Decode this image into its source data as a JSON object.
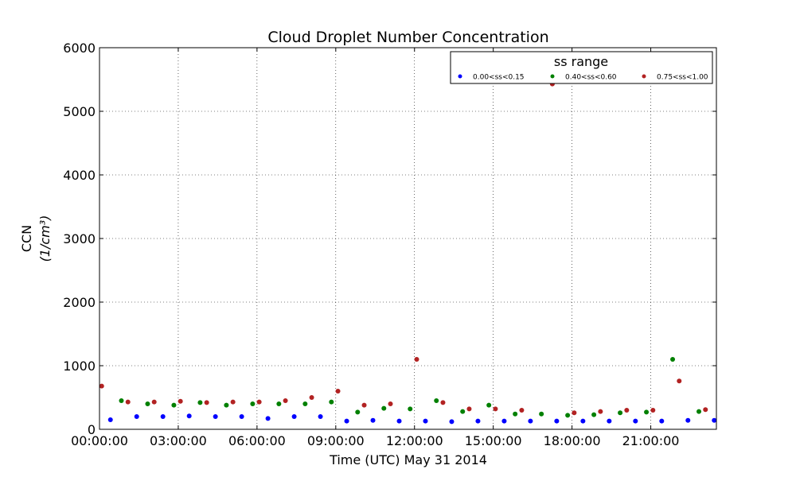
{
  "chart_data": {
    "type": "scatter",
    "title": "Cloud Droplet Number Concentration",
    "xlabel": "Time (UTC) May 31 2014",
    "ylabel": "CCN",
    "ylabel_units": "(1/cm³)",
    "xlim": [
      "00:00:00",
      "23:30:00"
    ],
    "ylim": [
      0,
      6000
    ],
    "x_ticks": [
      "00:00:00",
      "03:00:00",
      "06:00:00",
      "09:00:00",
      "12:00:00",
      "15:00:00",
      "18:00:00",
      "21:00:00"
    ],
    "y_ticks": [
      0,
      1000,
      2000,
      3000,
      4000,
      5000,
      6000
    ],
    "grid": true,
    "legend": {
      "title": "ss range",
      "placement": "top-right"
    },
    "series": [
      {
        "name": "0.00<ss<0.15",
        "color": "#0000ff",
        "points": [
          [
            "00:25",
            150
          ],
          [
            "01:25",
            200
          ],
          [
            "02:25",
            200
          ],
          [
            "03:25",
            210
          ],
          [
            "04:25",
            200
          ],
          [
            "05:25",
            200
          ],
          [
            "06:25",
            170
          ],
          [
            "07:25",
            200
          ],
          [
            "08:25",
            200
          ],
          [
            "09:25",
            130
          ],
          [
            "10:25",
            140
          ],
          [
            "11:25",
            130
          ],
          [
            "12:25",
            130
          ],
          [
            "13:25",
            120
          ],
          [
            "14:25",
            130
          ],
          [
            "15:25",
            130
          ],
          [
            "16:25",
            130
          ],
          [
            "17:25",
            130
          ],
          [
            "18:25",
            130
          ],
          [
            "19:25",
            130
          ],
          [
            "20:25",
            130
          ],
          [
            "21:25",
            130
          ],
          [
            "22:25",
            140
          ],
          [
            "23:25",
            140
          ]
        ]
      },
      {
        "name": "0.40<ss<0.60",
        "color": "#008000",
        "points": [
          [
            "00:50",
            450
          ],
          [
            "01:50",
            400
          ],
          [
            "02:50",
            380
          ],
          [
            "03:50",
            420
          ],
          [
            "04:50",
            380
          ],
          [
            "05:50",
            400
          ],
          [
            "06:50",
            400
          ],
          [
            "07:50",
            400
          ],
          [
            "08:50",
            430
          ],
          [
            "09:50",
            270
          ],
          [
            "10:50",
            330
          ],
          [
            "11:50",
            320
          ],
          [
            "12:50",
            450
          ],
          [
            "13:50",
            280
          ],
          [
            "14:50",
            380
          ],
          [
            "15:50",
            240
          ],
          [
            "16:50",
            240
          ],
          [
            "17:50",
            220
          ],
          [
            "18:50",
            230
          ],
          [
            "19:50",
            260
          ],
          [
            "20:50",
            270
          ],
          [
            "21:50",
            1100
          ],
          [
            "22:50",
            280
          ],
          [
            "23:50",
            270
          ]
        ]
      },
      {
        "name": "0.75<ss<1.00",
        "color": "#b22222",
        "points": [
          [
            "00:05",
            680
          ],
          [
            "01:05",
            430
          ],
          [
            "02:05",
            430
          ],
          [
            "03:05",
            440
          ],
          [
            "04:05",
            420
          ],
          [
            "05:05",
            430
          ],
          [
            "06:05",
            430
          ],
          [
            "07:05",
            450
          ],
          [
            "08:05",
            500
          ],
          [
            "09:05",
            600
          ],
          [
            "10:05",
            380
          ],
          [
            "11:05",
            400
          ],
          [
            "12:05",
            1100
          ],
          [
            "13:05",
            420
          ],
          [
            "14:05",
            320
          ],
          [
            "15:05",
            320
          ],
          [
            "16:05",
            300
          ],
          [
            "17:15",
            5430
          ],
          [
            "18:05",
            260
          ],
          [
            "19:05",
            280
          ],
          [
            "20:05",
            300
          ],
          [
            "21:05",
            300
          ],
          [
            "22:05",
            760
          ],
          [
            "23:05",
            310
          ]
        ]
      }
    ]
  }
}
